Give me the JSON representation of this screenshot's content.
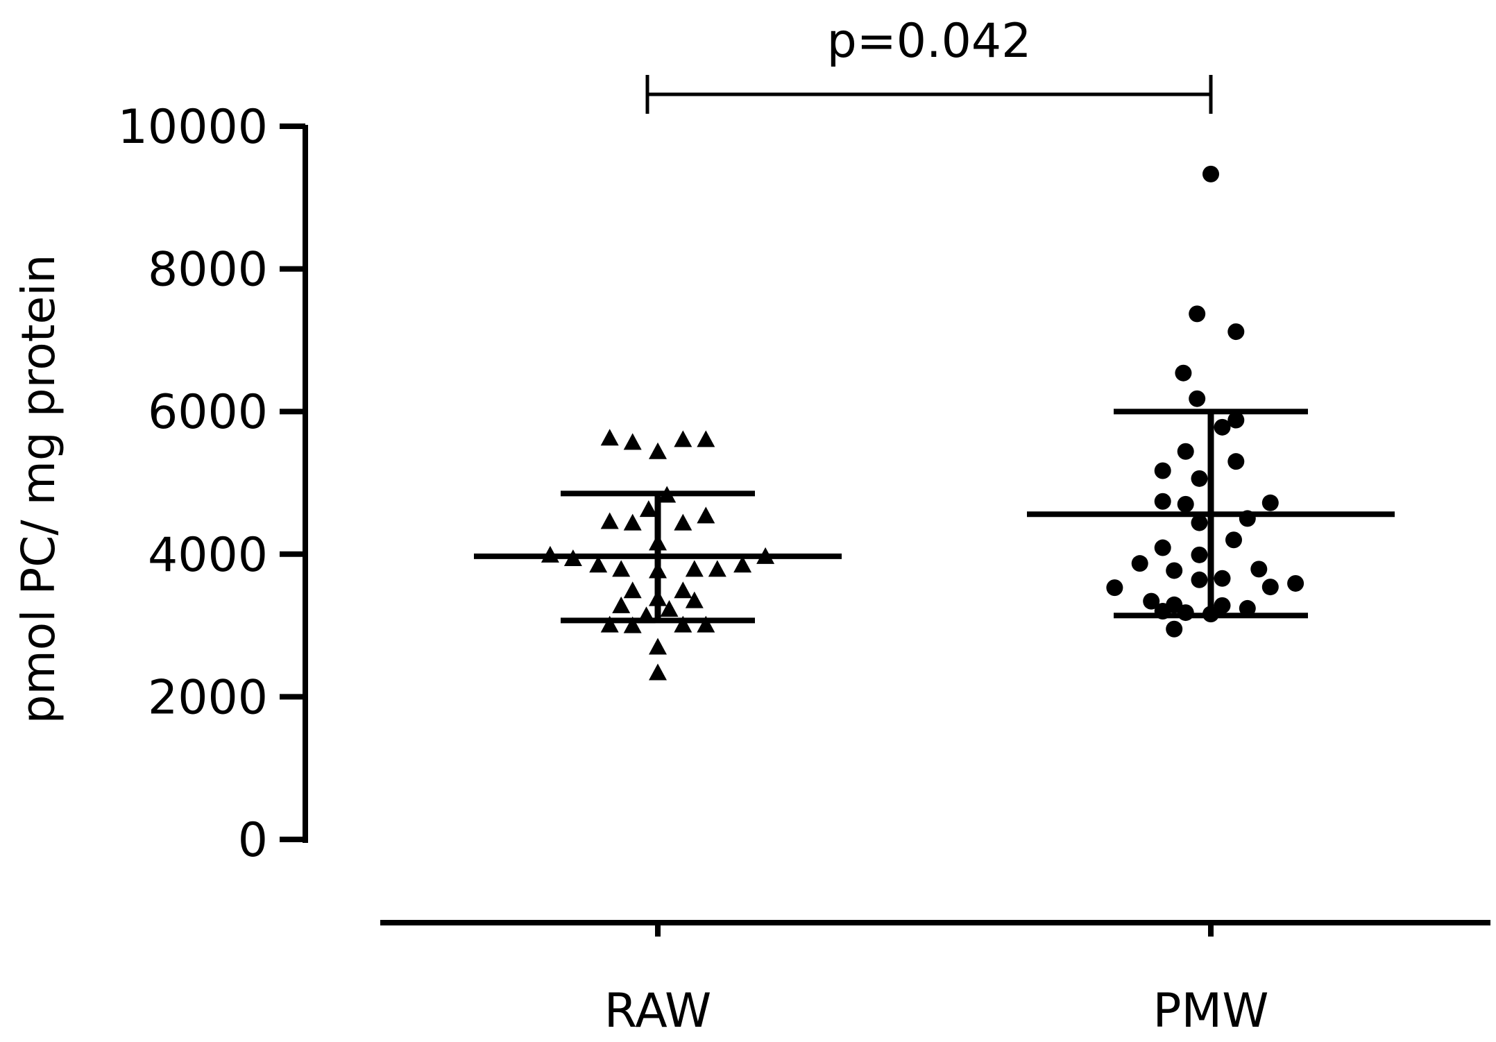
{
  "chart_data": {
    "type": "scatter",
    "ylabel": "pmol PC/ mg protein",
    "xlabel": "",
    "ylim": [
      0,
      10000
    ],
    "yticks": [
      0,
      2000,
      4000,
      6000,
      8000,
      10000
    ],
    "categories": [
      "RAW",
      "PMW"
    ],
    "annotation": "p=0.042",
    "series": [
      {
        "category": "RAW",
        "marker": "triangle",
        "mean": 3970,
        "sd_low": 3070,
        "sd_high": 4850,
        "points": [
          {
            "dx": -0.21,
            "y": 5620
          },
          {
            "dx": -0.11,
            "y": 5560
          },
          {
            "dx": 0.0,
            "y": 5430
          },
          {
            "dx": 0.11,
            "y": 5600
          },
          {
            "dx": 0.21,
            "y": 5600
          },
          {
            "dx": 0.04,
            "y": 4820
          },
          {
            "dx": -0.04,
            "y": 4620
          },
          {
            "dx": -0.21,
            "y": 4450
          },
          {
            "dx": -0.11,
            "y": 4430
          },
          {
            "dx": 0.11,
            "y": 4430
          },
          {
            "dx": 0.21,
            "y": 4530
          },
          {
            "dx": 0.0,
            "y": 4150
          },
          {
            "dx": -0.47,
            "y": 3980
          },
          {
            "dx": -0.37,
            "y": 3930
          },
          {
            "dx": 0.47,
            "y": 3960
          },
          {
            "dx": -0.26,
            "y": 3840
          },
          {
            "dx": -0.16,
            "y": 3780
          },
          {
            "dx": 0.26,
            "y": 3780
          },
          {
            "dx": 0.37,
            "y": 3840
          },
          {
            "dx": 0.16,
            "y": 3780
          },
          {
            "dx": 0.0,
            "y": 3760
          },
          {
            "dx": -0.11,
            "y": 3480
          },
          {
            "dx": 0.11,
            "y": 3480
          },
          {
            "dx": 0.16,
            "y": 3340
          },
          {
            "dx": 0.0,
            "y": 3370
          },
          {
            "dx": -0.16,
            "y": 3270
          },
          {
            "dx": -0.05,
            "y": 3130
          },
          {
            "dx": 0.05,
            "y": 3220
          },
          {
            "dx": -0.21,
            "y": 3000
          },
          {
            "dx": -0.11,
            "y": 2990
          },
          {
            "dx": 0.11,
            "y": 3000
          },
          {
            "dx": 0.21,
            "y": 3000
          },
          {
            "dx": 0.0,
            "y": 2690
          },
          {
            "dx": 0.0,
            "y": 2330
          }
        ]
      },
      {
        "category": "PMW",
        "marker": "circle",
        "mean": 4560,
        "sd_low": 3140,
        "sd_high": 6000,
        "points": [
          {
            "dx": 0.0,
            "y": 9330
          },
          {
            "dx": -0.06,
            "y": 7370
          },
          {
            "dx": 0.11,
            "y": 7120
          },
          {
            "dx": -0.12,
            "y": 6540
          },
          {
            "dx": -0.06,
            "y": 6180
          },
          {
            "dx": 0.11,
            "y": 5880
          },
          {
            "dx": 0.05,
            "y": 5780
          },
          {
            "dx": -0.11,
            "y": 5440
          },
          {
            "dx": 0.11,
            "y": 5300
          },
          {
            "dx": -0.21,
            "y": 5170
          },
          {
            "dx": -0.05,
            "y": 5060
          },
          {
            "dx": -0.21,
            "y": 4740
          },
          {
            "dx": -0.11,
            "y": 4700
          },
          {
            "dx": 0.26,
            "y": 4720
          },
          {
            "dx": 0.16,
            "y": 4500
          },
          {
            "dx": -0.05,
            "y": 4440
          },
          {
            "dx": 0.1,
            "y": 4200
          },
          {
            "dx": -0.21,
            "y": 4090
          },
          {
            "dx": -0.05,
            "y": 3990
          },
          {
            "dx": -0.31,
            "y": 3870
          },
          {
            "dx": -0.16,
            "y": 3770
          },
          {
            "dx": 0.21,
            "y": 3790
          },
          {
            "dx": 0.05,
            "y": 3660
          },
          {
            "dx": -0.05,
            "y": 3640
          },
          {
            "dx": 0.26,
            "y": 3540
          },
          {
            "dx": 0.37,
            "y": 3590
          },
          {
            "dx": -0.42,
            "y": 3530
          },
          {
            "dx": -0.26,
            "y": 3340
          },
          {
            "dx": -0.16,
            "y": 3290
          },
          {
            "dx": 0.05,
            "y": 3280
          },
          {
            "dx": 0.16,
            "y": 3240
          },
          {
            "dx": -0.11,
            "y": 3180
          },
          {
            "dx": 0.0,
            "y": 3160
          },
          {
            "dx": -0.21,
            "y": 3200
          },
          {
            "dx": -0.16,
            "y": 2950
          }
        ]
      }
    ]
  }
}
